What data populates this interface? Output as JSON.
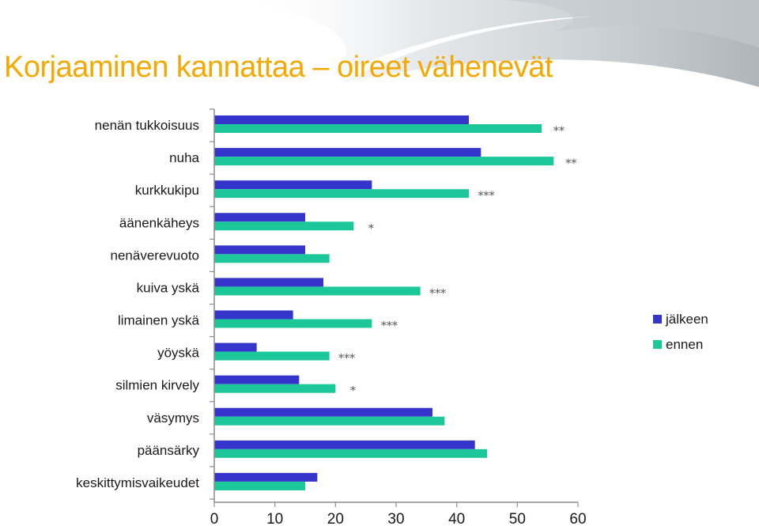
{
  "title": "Korjaaminen kannattaa – oireet vähenevät",
  "colors": {
    "title": "#f5a800",
    "after": "#3535cc",
    "before": "#1cc89a",
    "axis": "#8c8c8c"
  },
  "chart_data": {
    "type": "bar",
    "orientation": "horizontal",
    "categories": [
      "nenän tukkoisuus",
      "nuha",
      "kurkkukipu",
      "äänenkäheys",
      "nenäverevuoto",
      "kuiva yskä",
      "limainen yskä",
      "yöyskä",
      "silmien kirvely",
      "väsymys",
      "päänsärky",
      "keskittymisvaikeudet"
    ],
    "series": [
      {
        "name": "jälkeen",
        "color": "#3535cc",
        "values": [
          42,
          44,
          26,
          15,
          15,
          18,
          13,
          7,
          14,
          36,
          43,
          17
        ]
      },
      {
        "name": "ennen",
        "color": "#1cc89a",
        "values": [
          54,
          56,
          42,
          23,
          19,
          34,
          26,
          19,
          20,
          38,
          45,
          15
        ]
      }
    ],
    "significance": [
      "**",
      "**",
      "***",
      "*",
      "",
      "***",
      "***",
      "***",
      "*",
      "",
      "",
      ""
    ],
    "xlim": [
      0,
      60
    ],
    "xticks": [
      "0",
      "10",
      "20",
      "30",
      "40",
      "50",
      "60"
    ],
    "grid": false,
    "legend_position": "right"
  }
}
